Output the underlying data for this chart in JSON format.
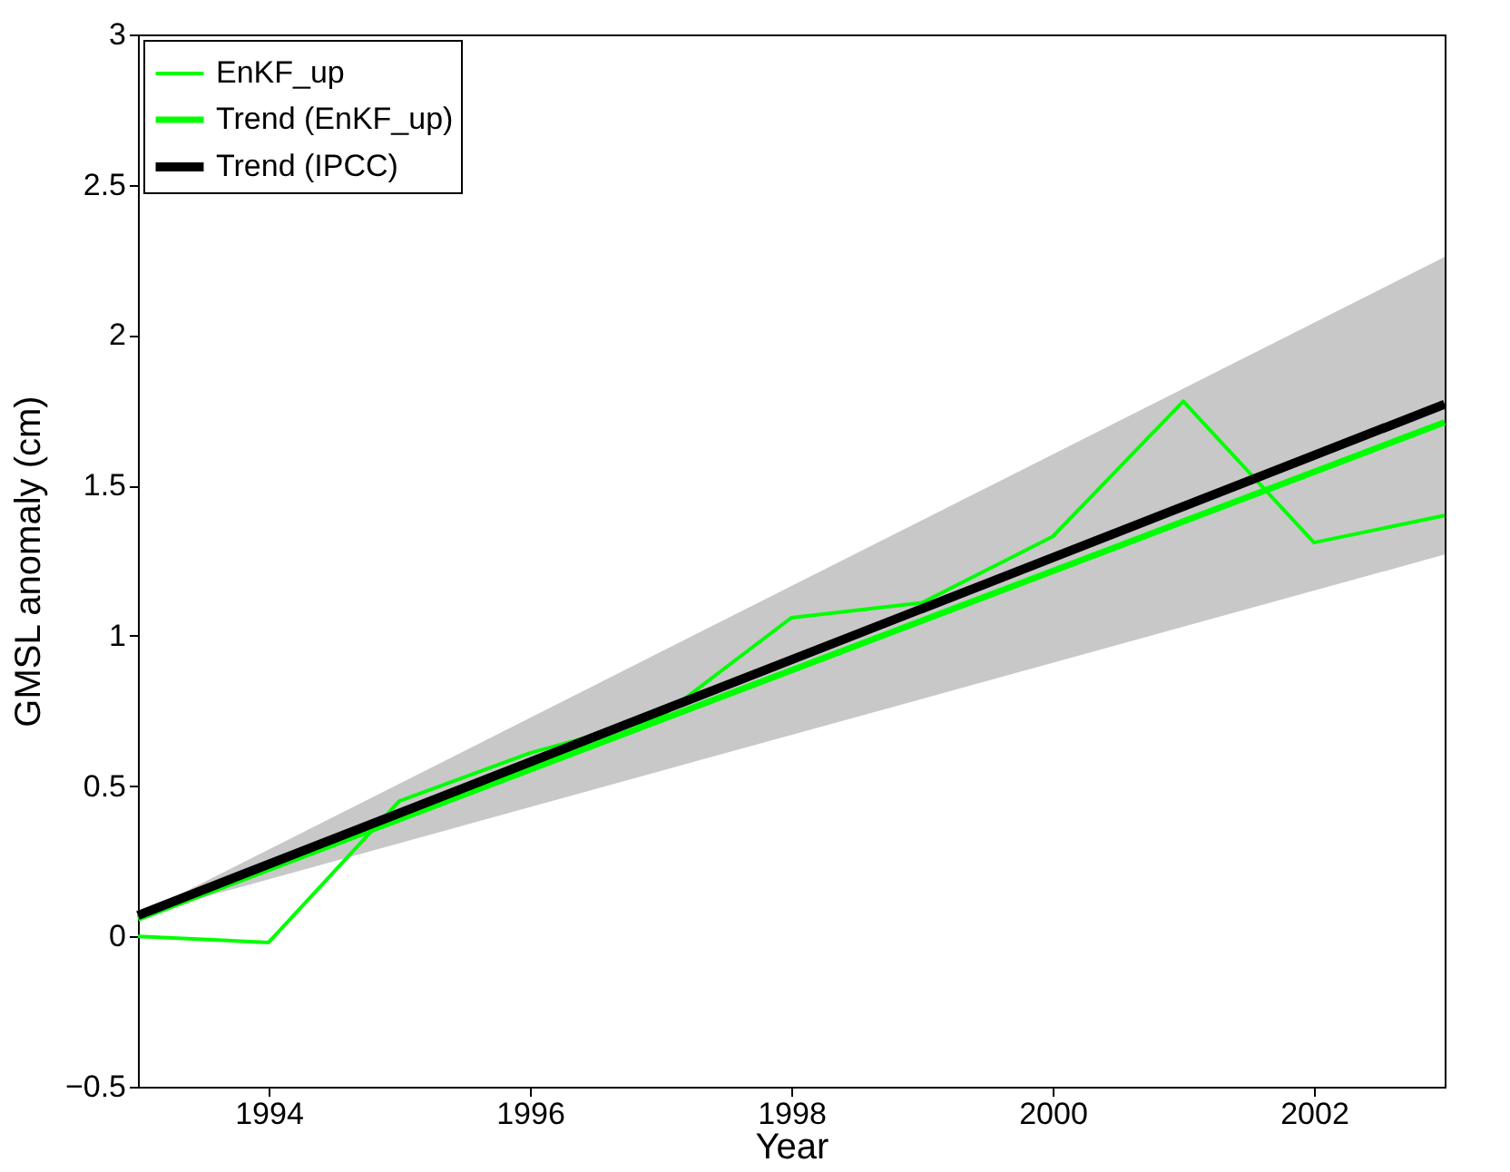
{
  "chart_data": {
    "type": "line",
    "xlabel": "Year",
    "ylabel": "GMSL anomaly (cm)",
    "xlim": [
      1993,
      2003
    ],
    "xticks": [
      1994,
      1996,
      1998,
      2000,
      2002
    ],
    "ylim": [
      -0.5,
      3
    ],
    "yticks": [
      {
        "value": -0.5,
        "label": "−0.5"
      },
      0,
      0.5,
      1,
      1.5,
      2,
      2.5,
      3
    ],
    "legend": "top left",
    "grid": false,
    "marker": "none",
    "line_style": "solid",
    "series": [
      {
        "name": "EnKF_up",
        "color": "#00ff00",
        "x": [
          1993,
          1994,
          1995,
          1996,
          1997,
          1998,
          1999,
          2000,
          2001,
          2002,
          2003
        ],
        "values": [
          0.0,
          -0.02,
          0.45,
          0.61,
          0.73,
          1.06,
          1.11,
          1.33,
          1.78,
          1.31,
          1.4
        ]
      },
      {
        "name": "Trend (EnKF_up)",
        "color": "#00ff00",
        "x": [
          1993,
          2003
        ],
        "values": [
          0.06,
          1.71
        ]
      },
      {
        "name": "Trend (IPCC)",
        "color": "#000000",
        "x": [
          1993,
          2003
        ],
        "values": [
          0.07,
          1.77
        ],
        "lower": [
          0.07,
          1.27
        ],
        "upper": [
          0.07,
          2.26
        ]
      }
    ]
  }
}
